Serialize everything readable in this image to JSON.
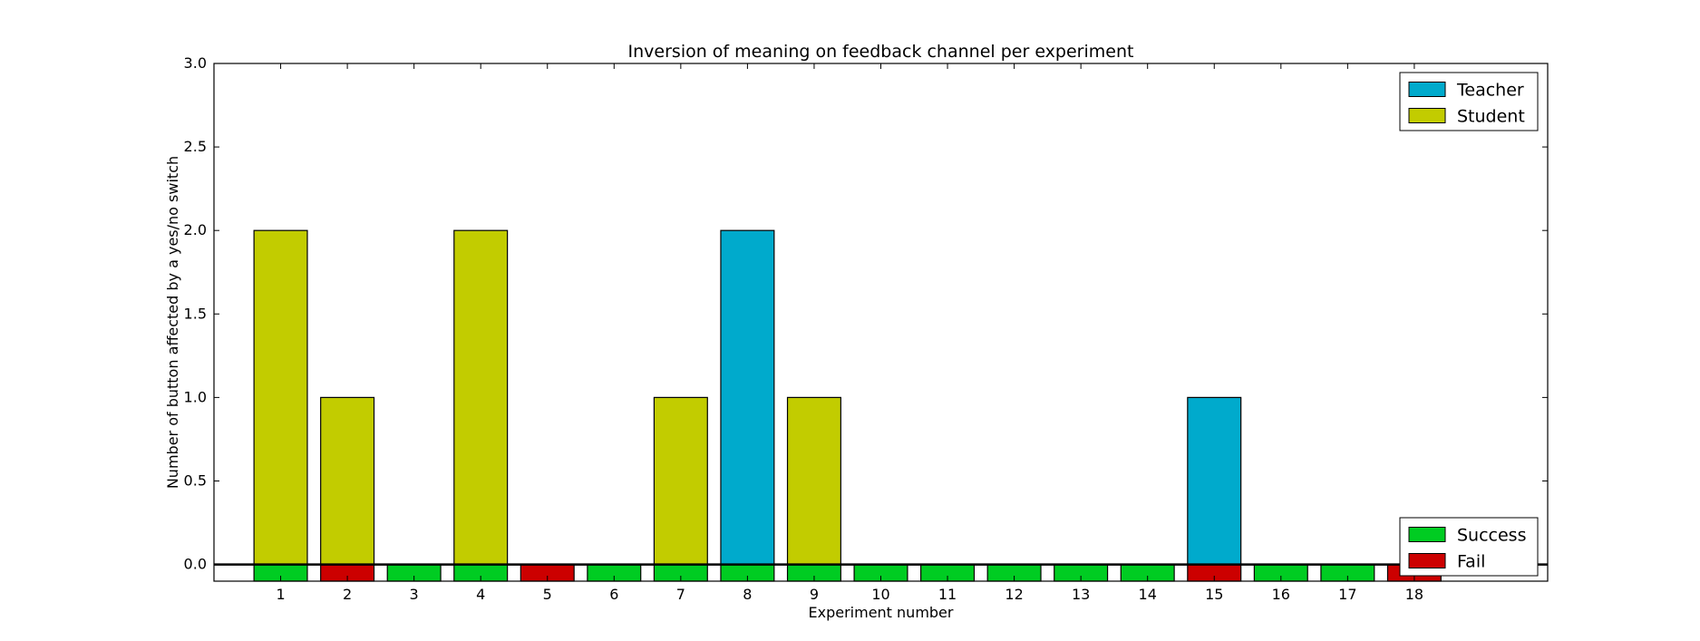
{
  "chart_data": {
    "type": "bar",
    "title": "Inversion of meaning on feedback channel per experiment",
    "xlabel": "Experiment number",
    "ylabel": "Number of button affected by a yes/no switch",
    "categories": [
      "1",
      "2",
      "3",
      "4",
      "5",
      "6",
      "7",
      "8",
      "9",
      "10",
      "11",
      "12",
      "13",
      "14",
      "15",
      "16",
      "17",
      "18"
    ],
    "ylim": [
      -0.1,
      3.0
    ],
    "xlim": [
      0,
      20
    ],
    "yticks": [
      "0.0",
      "0.5",
      "1.0",
      "1.5",
      "2.0",
      "2.5",
      "3.0"
    ],
    "grid": false,
    "series": [
      {
        "name": "Teacher",
        "color": "#00aacc",
        "values": [
          0,
          0,
          0,
          0,
          0,
          0,
          0,
          2,
          0,
          0,
          0,
          0,
          0,
          0,
          1,
          0,
          0,
          0
        ]
      },
      {
        "name": "Student",
        "color": "#c2cc00",
        "values": [
          2,
          1,
          0,
          2,
          0,
          0,
          1,
          0,
          1,
          0,
          0,
          0,
          0,
          0,
          0,
          0,
          0,
          0
        ]
      }
    ],
    "outcome": {
      "legend": [
        {
          "name": "Success",
          "color": "#00cc22"
        },
        {
          "name": "Fail",
          "color": "#cc0000"
        }
      ],
      "values": [
        "Success",
        "Fail",
        "Success",
        "Success",
        "Fail",
        "Success",
        "Success",
        "Success",
        "Success",
        "Success",
        "Success",
        "Success",
        "Success",
        "Success",
        "Fail",
        "Success",
        "Success",
        "Fail"
      ],
      "depth": -0.1
    },
    "legend_placement": [
      "top-right",
      "bottom-right"
    ]
  }
}
